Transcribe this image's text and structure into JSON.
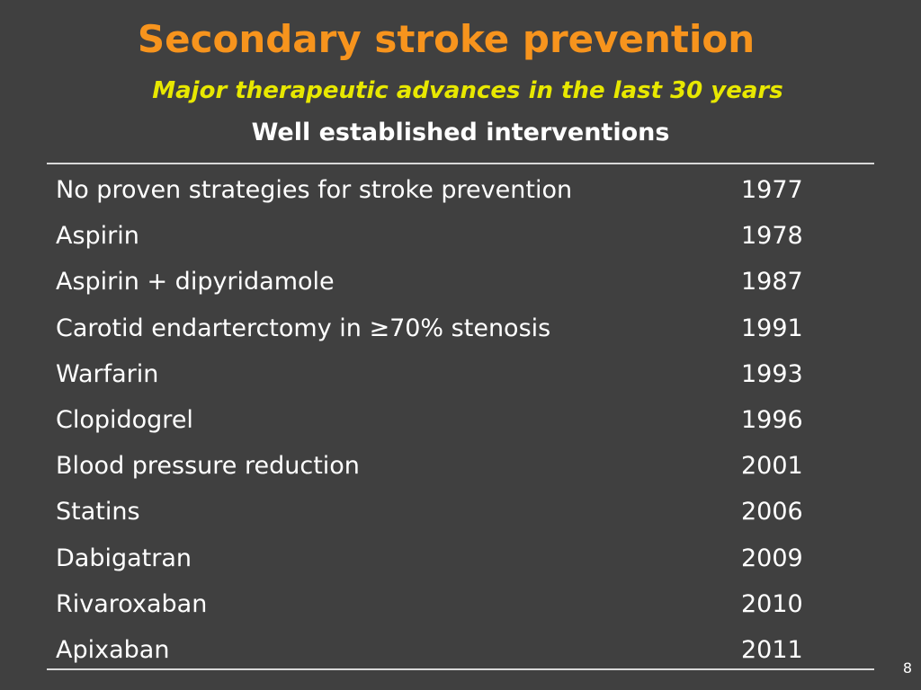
{
  "slide": {
    "title": "Secondary stroke prevention",
    "subtitle": "Major therapeutic advances in the last 30 years",
    "table_heading": "Well established interventions",
    "rows": [
      {
        "intervention": "No proven strategies for stroke prevention",
        "year": "1977"
      },
      {
        "intervention": "Aspirin",
        "year": "1978"
      },
      {
        "intervention": "Aspirin + dipyridamole",
        "year": "1987"
      },
      {
        "intervention": "Carotid endarterctomy in ≥70% stenosis",
        "year": "1991"
      },
      {
        "intervention": "Warfarin",
        "year": "1993"
      },
      {
        "intervention": "Clopidogrel",
        "year": "1996"
      },
      {
        "intervention": "Blood pressure reduction",
        "year": "2001"
      },
      {
        "intervention": "Statins",
        "year": "2006"
      },
      {
        "intervention": "Dabigatran",
        "year": "2009"
      },
      {
        "intervention": "Rivaroxaban",
        "year": "2010"
      },
      {
        "intervention": "Apixaban",
        "year": "2011"
      }
    ],
    "page_number": "8"
  },
  "colors": {
    "background": "#404040",
    "title": "#f7941d",
    "subtitle": "#e8e800",
    "text": "#ffffff",
    "rule": "#d9d9d9"
  }
}
